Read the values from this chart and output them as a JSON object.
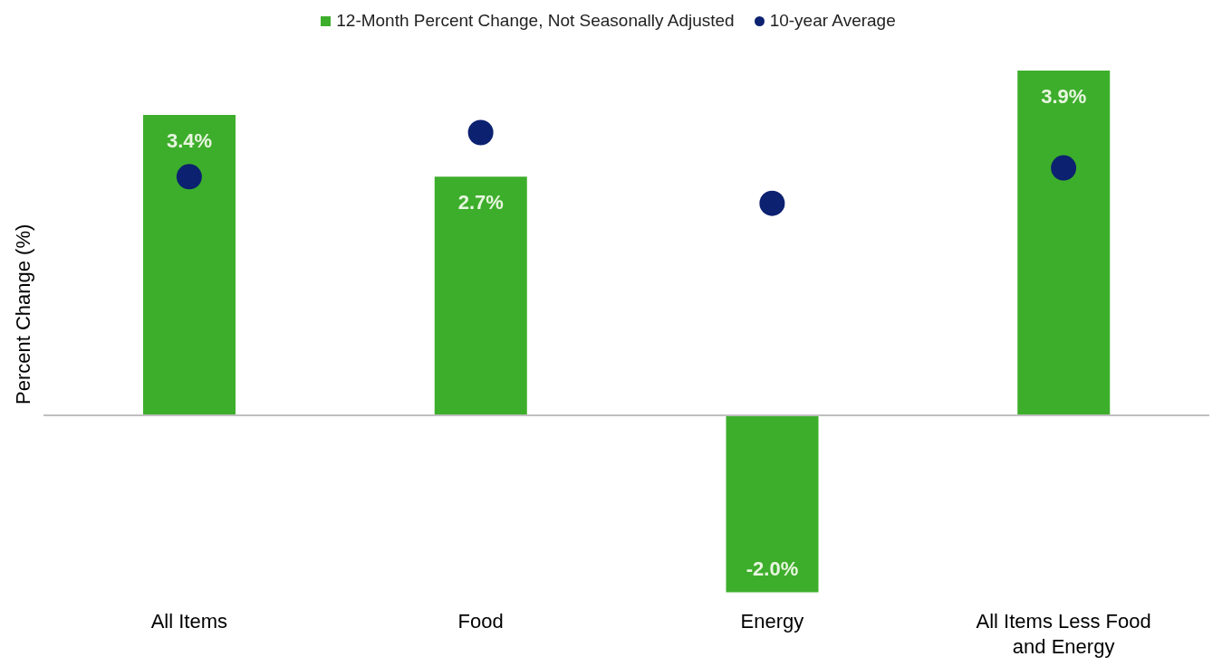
{
  "chart_data": {
    "type": "bar",
    "categories": [
      "All Items",
      "Food",
      "Energy",
      "All Items Less Food and Energy"
    ],
    "ylabel": "Percent Change (%)",
    "series": [
      {
        "name": "12-Month Percent Change, Not Seasonally Adjusted",
        "color": "#3dae2b",
        "values": [
          3.4,
          2.7,
          -2.0,
          3.9
        ],
        "value_labels": [
          "3.4%",
          "2.7%",
          "-2.0%",
          "3.9%"
        ]
      },
      {
        "name": "10-year Average",
        "type": "scatter",
        "color": "#0c2170",
        "x": [
          "All Items",
          "Food",
          "Energy",
          "All Items Less Food and Energy"
        ],
        "values": [
          2.7,
          3.2,
          2.4,
          2.8
        ]
      }
    ],
    "legend": "top",
    "grid": false,
    "marker": "circle"
  }
}
